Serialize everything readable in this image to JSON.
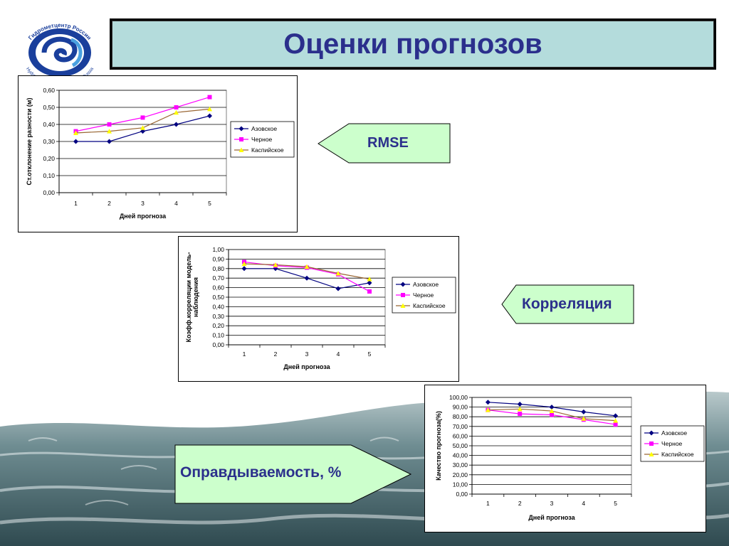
{
  "slide": {
    "title": "Оценки прогнозов",
    "logo": {
      "top_text": "Гидрометцентр России",
      "bottom_text": "Hydrometeorological Centre of Russia",
      "icon": "hydromet-swirl-logo"
    }
  },
  "callouts": {
    "rmse": "RMSE",
    "correlation": "Корреляция",
    "accuracy": "Оправдываемость, %"
  },
  "colors": {
    "title_bg": "#b4dcdc",
    "title_text": "#2b2f8c",
    "callout_fill": "#ccffcc",
    "azov": "#000080",
    "black_sea": "#ff00ff",
    "caspian": "#ffff00",
    "caspian_line": "#996633"
  },
  "chart_data": [
    {
      "type": "line",
      "xlabel": "Дней прогноза",
      "ylabel": "Ст.отклонение разности (м)",
      "categories": [
        "1",
        "2",
        "3",
        "4",
        "5"
      ],
      "ylim": [
        0,
        0.6
      ],
      "yticks": [
        "0,00",
        "0,10",
        "0,20",
        "0,30",
        "0,40",
        "0,50",
        "0,60"
      ],
      "grid": true,
      "legend": "right",
      "series": [
        {
          "name": "Азовское",
          "values": [
            0.3,
            0.3,
            0.36,
            0.4,
            0.45
          ]
        },
        {
          "name": "Черное",
          "values": [
            0.36,
            0.4,
            0.44,
            0.5,
            0.56
          ]
        },
        {
          "name": "Каспийское",
          "values": [
            0.35,
            0.36,
            0.38,
            0.47,
            0.49
          ]
        }
      ]
    },
    {
      "type": "line",
      "xlabel": "Дней прогноза",
      "ylabel": "Коэфф.корреляции модель-наблюдения",
      "categories": [
        "1",
        "2",
        "3",
        "4",
        "5"
      ],
      "ylim": [
        0,
        1
      ],
      "yticks": [
        "0,00",
        "0,10",
        "0,20",
        "0,30",
        "0,40",
        "0,50",
        "0,60",
        "0,70",
        "0,80",
        "0,90",
        "1,00"
      ],
      "grid": true,
      "legend": "right",
      "series": [
        {
          "name": "Азовское",
          "values": [
            0.8,
            0.8,
            0.7,
            0.59,
            0.65
          ]
        },
        {
          "name": "Черное",
          "values": [
            0.87,
            0.83,
            0.81,
            0.74,
            0.56
          ]
        },
        {
          "name": "Каспийское",
          "values": [
            0.85,
            0.84,
            0.82,
            0.75,
            0.69
          ]
        }
      ]
    },
    {
      "type": "line",
      "xlabel": "Дней прогноза",
      "ylabel": "Качество прогноза(%)",
      "categories": [
        "1",
        "2",
        "3",
        "4",
        "5"
      ],
      "ylim": [
        0,
        100
      ],
      "yticks": [
        "0,00",
        "10,00",
        "20,00",
        "30,00",
        "40,00",
        "50,00",
        "60,00",
        "70,00",
        "80,00",
        "90,00",
        "100,00"
      ],
      "grid": true,
      "legend": "right",
      "series": [
        {
          "name": "Азовское",
          "values": [
            95,
            93,
            90,
            85,
            81
          ]
        },
        {
          "name": "Черное",
          "values": [
            87,
            83,
            82,
            77,
            72
          ]
        },
        {
          "name": "Каспийское",
          "values": [
            87,
            88,
            86,
            78,
            76
          ]
        }
      ]
    }
  ]
}
